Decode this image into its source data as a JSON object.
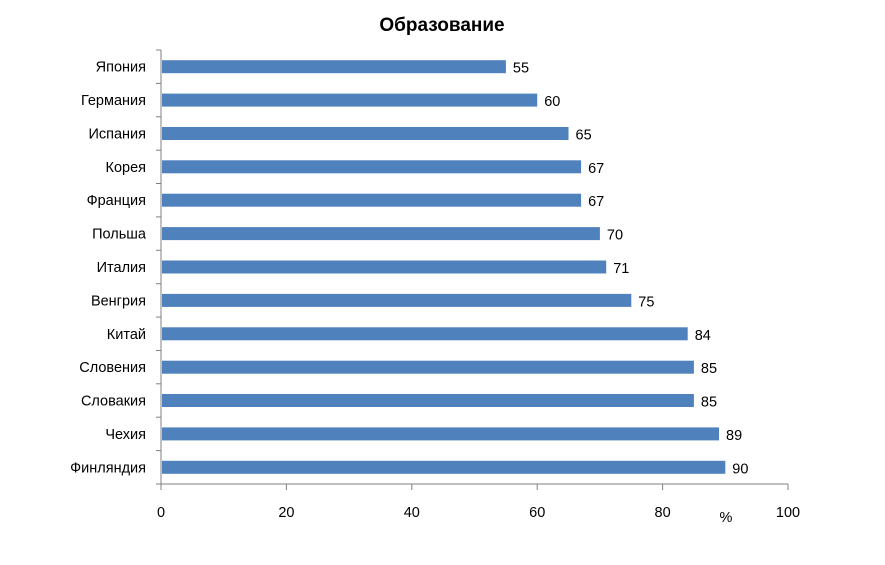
{
  "chart_data": {
    "type": "bar",
    "orientation": "horizontal",
    "title": "Образование",
    "xlabel": "%",
    "ylabel": "",
    "categories": [
      "Япония",
      "Германия",
      "Испания",
      "Корея",
      "Франция",
      "Польша",
      "Италия",
      "Венгрия",
      "Китай",
      "Словения",
      "Словакия",
      "Чехия",
      "Финляндия"
    ],
    "values": [
      55,
      60,
      65,
      67,
      67,
      70,
      71,
      75,
      84,
      85,
      85,
      89,
      90
    ],
    "xlim": [
      0,
      100
    ],
    "xticks": [
      0,
      20,
      40,
      60,
      80,
      100
    ],
    "grid": false,
    "legend": "none",
    "bar_color": "#4f81bd"
  }
}
